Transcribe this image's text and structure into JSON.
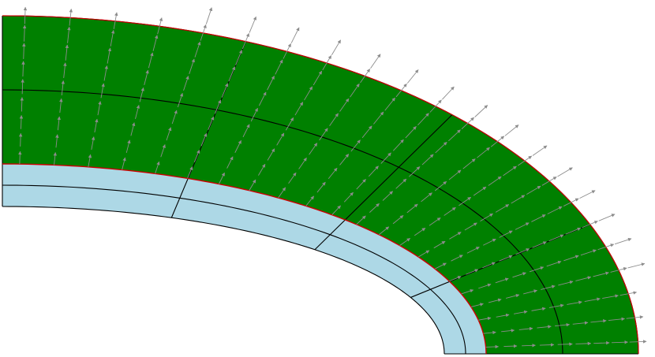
{
  "diagram": {
    "type": "finite-element mesh of a quarter annular cross-section with displacement/velocity vector field",
    "regions": [
      {
        "name": "inner-layer",
        "color": "#add8e6",
        "divisions_radial": 2,
        "divisions_angular": 4
      },
      {
        "name": "outer-layer",
        "color": "#008000",
        "divisions_radial": 2,
        "divisions_angular": 4
      }
    ],
    "interface_color": "#cc0000",
    "mesh_line_color": "#000000",
    "vector_color": "#8c8c8c",
    "vector_field": {
      "rows": 10,
      "arrows_per_row": 22
    }
  }
}
